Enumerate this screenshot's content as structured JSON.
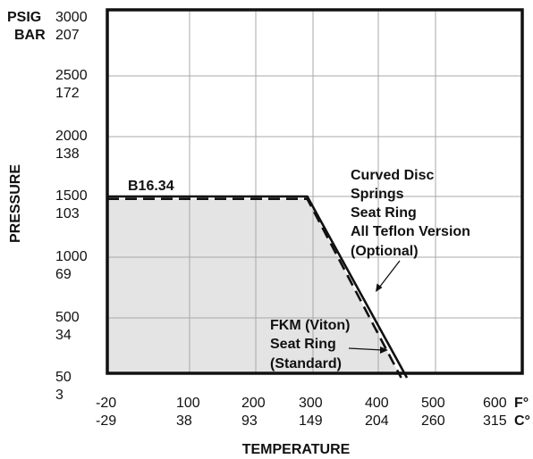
{
  "chart_data": {
    "type": "area",
    "xlabel": "TEMPERATURE",
    "ylabel": "PRESSURE",
    "y_unit_labels": [
      "PSIG",
      "BAR"
    ],
    "x_unit_labels": [
      "F°",
      "C°"
    ],
    "x_unit": "F",
    "y_unit": "PSIG",
    "xlim": [
      -20,
      600
    ],
    "ylim": [
      50,
      3000
    ],
    "x_ticks": [
      {
        "value": -20,
        "f": "-20",
        "c": "-29"
      },
      {
        "value": 100,
        "f": "100",
        "c": "38"
      },
      {
        "value": 200,
        "f": "200",
        "c": "93"
      },
      {
        "value": 300,
        "f": "300",
        "c": "149"
      },
      {
        "value": 400,
        "f": "400",
        "c": "204"
      },
      {
        "value": 500,
        "f": "500",
        "c": "260"
      },
      {
        "value": 600,
        "f": "600",
        "c": "315"
      }
    ],
    "y_ticks": [
      {
        "value": 3000,
        "psig": "3000",
        "bar": "207"
      },
      {
        "value": 2500,
        "psig": "2500",
        "bar": "172"
      },
      {
        "value": 2000,
        "psig": "2000",
        "bar": "138"
      },
      {
        "value": 1500,
        "psig": "1500",
        "bar": "103"
      },
      {
        "value": 1000,
        "psig": "1000",
        "bar": "69"
      },
      {
        "value": 500,
        "psig": "500",
        "bar": "34"
      },
      {
        "value": 50,
        "psig": "50",
        "bar": "3"
      }
    ],
    "grid": true,
    "series": [
      {
        "name": "B16.34",
        "style": "solid",
        "x": [
          -20,
          290,
          450
        ],
        "y": [
          1500,
          1500,
          50
        ]
      },
      {
        "name": "FKM (Viton) Seat Ring (Standard)",
        "style": "dashed",
        "x": [
          -20,
          290,
          440
        ],
        "y": [
          1480,
          1480,
          50
        ]
      }
    ],
    "fill_series": "FKM (Viton) Seat Ring (Standard)",
    "annotations": {
      "b1634": "B16.34",
      "curved_disc": [
        "Curved Disc",
        "Springs",
        "Seat Ring",
        "All Teflon Version",
        "(Optional)"
      ],
      "fkm": [
        "FKM (Viton)",
        "Seat Ring",
        "(Standard)"
      ]
    }
  },
  "colors": {
    "fill": "#e4e4e4",
    "grid": "#a9a9a9",
    "line": "#111111",
    "frame": "#111111"
  }
}
